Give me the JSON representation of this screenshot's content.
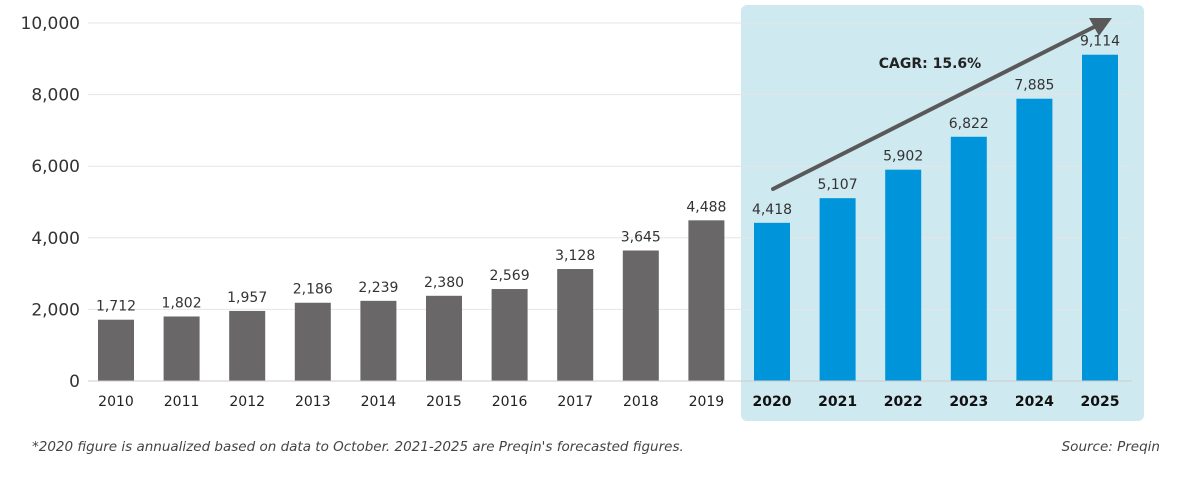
{
  "chart_data": {
    "type": "bar",
    "categories": [
      "2010",
      "2011",
      "2012",
      "2013",
      "2014",
      "2015",
      "2016",
      "2017",
      "2018",
      "2019",
      "2020",
      "2021",
      "2022",
      "2023",
      "2024",
      "2025"
    ],
    "values": [
      1712,
      1802,
      1957,
      2186,
      2239,
      2380,
      2569,
      3128,
      3645,
      4488,
      4418,
      5107,
      5902,
      6822,
      7885,
      9114
    ],
    "data_labels": [
      "1,712",
      "1,802",
      "1,957",
      "2,186",
      "2,239",
      "2,380",
      "2,569",
      "3,128",
      "3,645",
      "4,488",
      "4,418",
      "5,107",
      "5,902",
      "6,822",
      "7,885",
      "9,114"
    ],
    "forecast_categories": [
      "2020",
      "2021",
      "2022",
      "2023",
      "2024",
      "2025"
    ],
    "ylim": [
      0,
      10000
    ],
    "yticks": [
      0,
      2000,
      4000,
      6000,
      8000,
      10000
    ],
    "ytick_labels": [
      "0",
      "2,000",
      "4,000",
      "6,000",
      "8,000",
      "10,000"
    ],
    "title": "",
    "xlabel": "",
    "ylabel": "",
    "grid": true,
    "annotation": "CAGR: 15.6%",
    "colors": {
      "historical": "#696767",
      "forecast": "#0095da",
      "forecast_background": "#cfe9f1",
      "arrow": "#595959",
      "gridline": "#e6e6e6"
    }
  },
  "footnote": "*2020 figure is annualized based on data to October. 2021-2025 are Preqin's forecasted figures.",
  "source": "Source: Preqin"
}
